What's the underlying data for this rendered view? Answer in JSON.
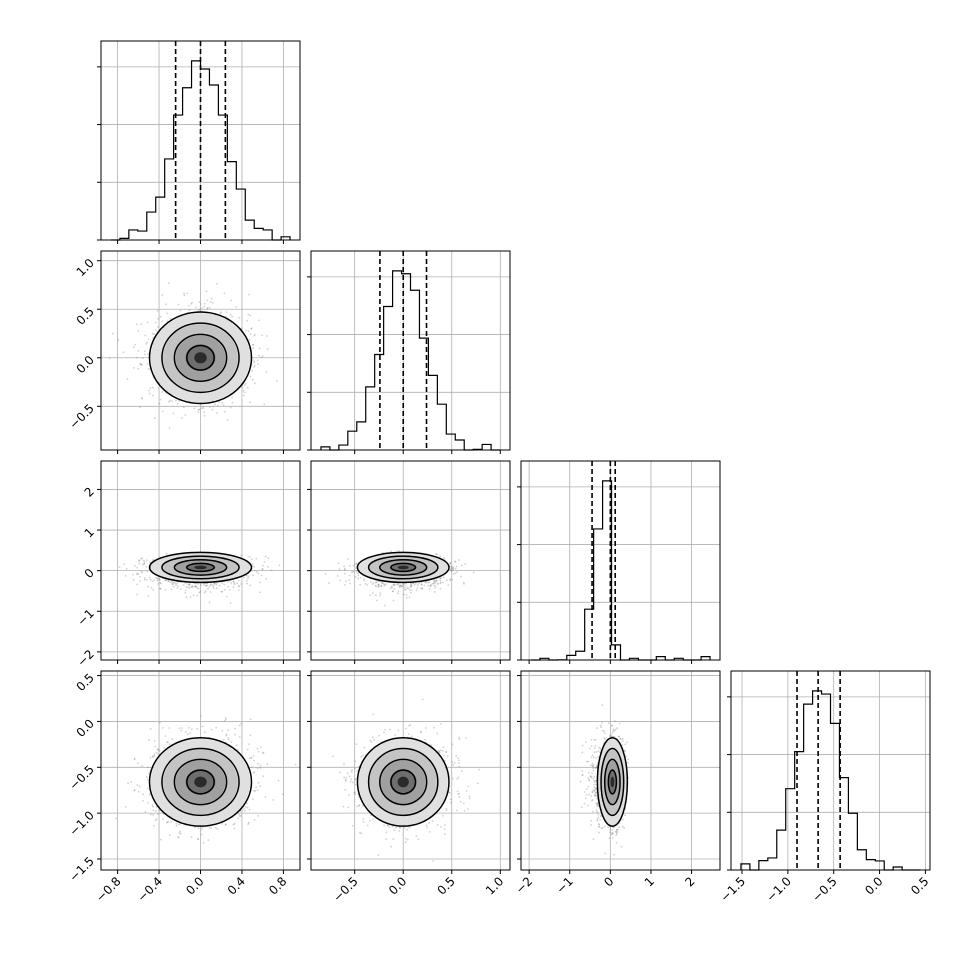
{
  "chart_data": {
    "type": "corner",
    "n_params": 4,
    "grid": true,
    "hist_style": "step",
    "quantiles": [
      0.16,
      0.5,
      0.84
    ],
    "contour_levels": 4,
    "params": [
      {
        "range": [
          -0.96,
          0.96
        ],
        "tick_values": [
          -0.8,
          -0.4,
          0.0,
          0.4,
          0.8
        ],
        "tick_labels": [
          "−0.8",
          "−0.4",
          "0.0",
          "0.4",
          "0.8"
        ],
        "quantile_lines": [
          -0.24,
          0.0,
          0.24
        ],
        "mean": 0.0,
        "sigma": 0.24,
        "skew": 0.0,
        "hist_bins": 20,
        "hist_ylim": [
          0,
          1950
        ]
      },
      {
        "range": [
          -0.95,
          1.1
        ],
        "tick_values": [
          -0.5,
          0.0,
          0.5,
          1.0
        ],
        "tick_labels": [
          "−0.5",
          "0.0",
          "0.5",
          "1.0"
        ],
        "quantile_lines": [
          -0.24,
          0.0,
          0.24
        ],
        "mean": 0.0,
        "sigma": 0.23,
        "skew": 0.0,
        "hist_bins": 20,
        "hist_ylim": [
          0,
          2050
        ]
      },
      {
        "range": [
          -2.2,
          2.7
        ],
        "tick_values": [
          -2,
          -1,
          0,
          1,
          2
        ],
        "tick_labels": [
          "−2",
          "−1",
          "0",
          "1",
          "2"
        ],
        "quantile_lines": [
          -0.45,
          0.0,
          0.12
        ],
        "mean": 0.0,
        "sigma": 0.3,
        "skew": -3.5,
        "hist_bins": 20,
        "hist_ylim": [
          0,
          4300
        ]
      },
      {
        "range": [
          -1.62,
          0.55
        ],
        "tick_values": [
          -1.5,
          -1.0,
          -0.5,
          0.0,
          0.5
        ],
        "tick_labels": [
          "−1.5",
          "−1.0",
          "−0.5",
          "0.0",
          "0.5"
        ],
        "quantile_lines": [
          -0.9,
          -0.67,
          -0.43
        ],
        "mean": -0.66,
        "sigma": 0.235,
        "skew": 0.0,
        "hist_bins": 20,
        "hist_ylim": [
          0,
          2000
        ]
      }
    ]
  }
}
